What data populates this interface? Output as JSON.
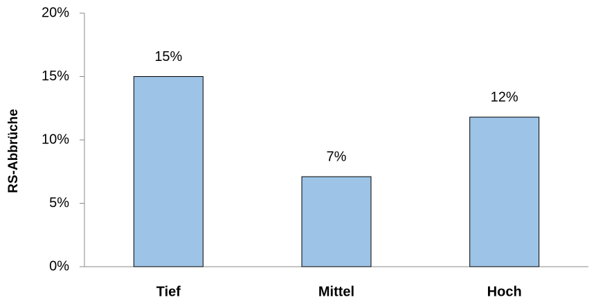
{
  "chart_data": {
    "type": "bar",
    "y_label": "RS-Abbrüche",
    "categories": [
      "Tief",
      "Mittel",
      "Hoch"
    ],
    "values": [
      15,
      7.1,
      11.8
    ],
    "value_labels": [
      "15%",
      "7%",
      "12%"
    ],
    "color": "#9dc3e6",
    "ylim": [
      0,
      20
    ],
    "yticks": [
      {
        "value": 0,
        "label": "0%"
      },
      {
        "value": 5,
        "label": "5%"
      },
      {
        "value": 10,
        "label": "10%"
      },
      {
        "value": 15,
        "label": "15%"
      },
      {
        "value": 20,
        "label": "20%"
      }
    ],
    "grid": false
  }
}
